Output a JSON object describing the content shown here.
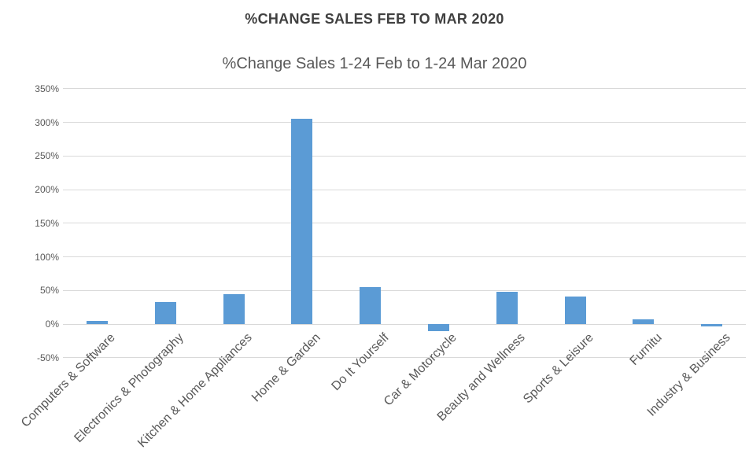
{
  "chart_data": {
    "type": "bar",
    "title": "%CHANGE SALES FEB TO MAR 2020",
    "subtitle": "%Change Sales 1-24 Feb to 1-24 Mar 2020",
    "categories": [
      "Computers & Software",
      "Electronics & Photography",
      "Kitchen & Home Appliances",
      "Home & Garden",
      "Do It Yourself",
      "Car & Motorcycle",
      "Beauty and Wellness",
      "Sports & Leisure",
      "Furnitu",
      "Industry & Business"
    ],
    "values": [
      5,
      33,
      44,
      305,
      55,
      -11,
      48,
      41,
      7,
      -3
    ],
    "y_ticks": [
      {
        "value": 350,
        "label": "350%"
      },
      {
        "value": 300,
        "label": "300%"
      },
      {
        "value": 250,
        "label": "250%"
      },
      {
        "value": 200,
        "label": "200%"
      },
      {
        "value": 150,
        "label": "150%"
      },
      {
        "value": 100,
        "label": "100%"
      },
      {
        "value": 50,
        "label": "50%"
      },
      {
        "value": 0,
        "label": "0%"
      },
      {
        "value": -50,
        "label": "-50%"
      }
    ],
    "ylim": [
      -50,
      350
    ],
    "xlabel": "",
    "ylabel": "",
    "grid": true,
    "legend": false,
    "bar_color": "#5b9bd5",
    "gridline_color": "#d9d9d9",
    "text_color": "#595959",
    "title_color": "#404040"
  }
}
